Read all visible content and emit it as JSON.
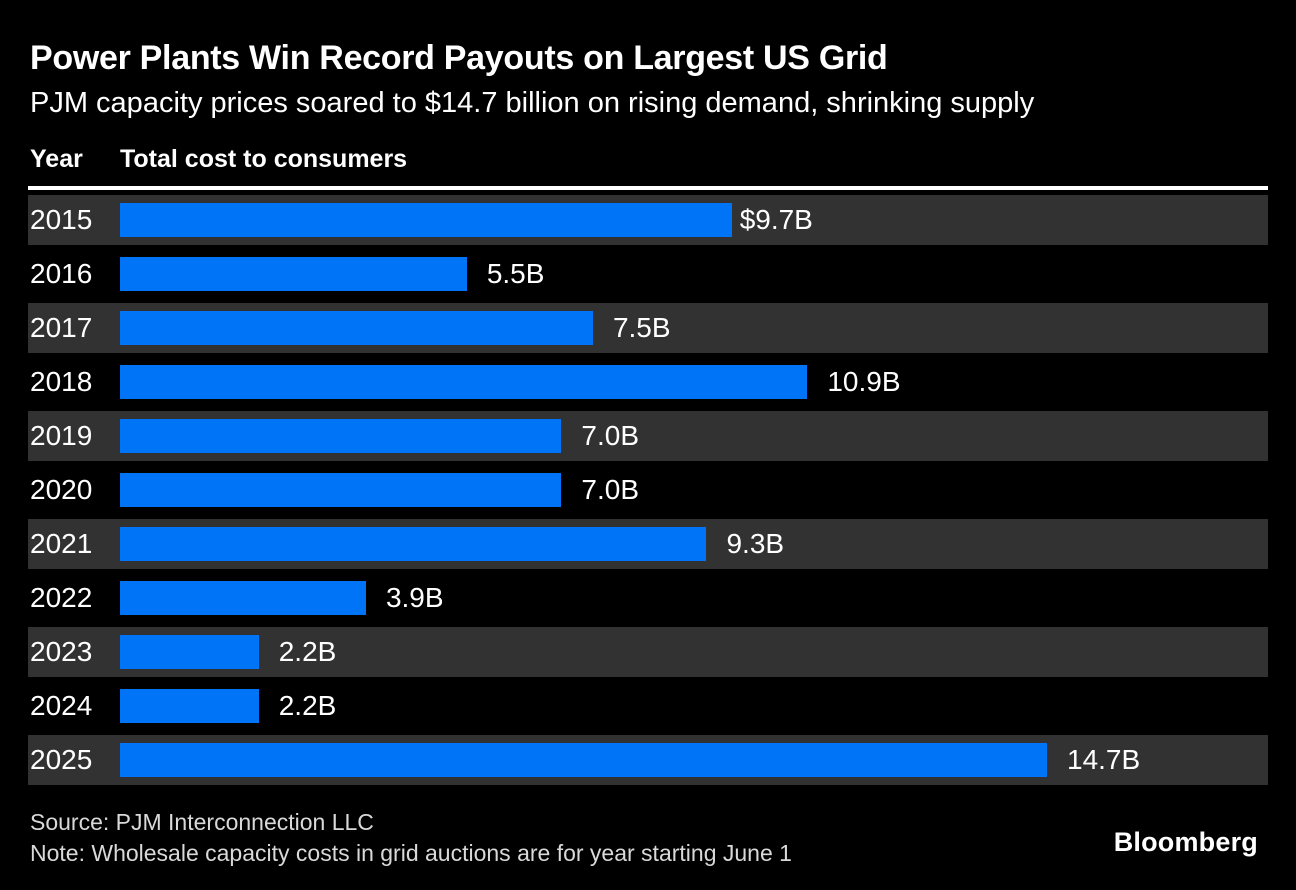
{
  "header": {
    "title": "Power Plants Win Record Payouts on Largest US Grid",
    "subtitle": "PJM capacity prices soared to $14.7 billion on rising demand, shrinking supply"
  },
  "columns": {
    "year_header": "Year",
    "value_header": "Total cost to consumers"
  },
  "chart_data": {
    "type": "bar",
    "orientation": "horizontal",
    "title": "Power Plants Win Record Payouts on Largest US Grid",
    "subtitle": "PJM capacity prices soared to $14.7 billion on rising demand, shrinking supply",
    "categories": [
      "2015",
      "2016",
      "2017",
      "2018",
      "2019",
      "2020",
      "2021",
      "2022",
      "2023",
      "2024",
      "2025"
    ],
    "values": [
      9.7,
      5.5,
      7.5,
      10.9,
      7.0,
      7.0,
      9.3,
      3.9,
      2.2,
      2.2,
      14.7
    ],
    "value_labels": [
      "$9.7B",
      "5.5B",
      "7.5B",
      "10.9B",
      "7.0B",
      "7.0B",
      "9.3B",
      "3.9B",
      "2.2B",
      "2.2B",
      "14.7B"
    ],
    "unit": "billion USD",
    "xlabel": "Total cost to consumers",
    "ylabel": "Year",
    "xlim": [
      0,
      14.7
    ],
    "grid": false,
    "legend": false,
    "bar_color": "#0074f7",
    "row_stripe_color": "#323232",
    "background_color": "#000000"
  },
  "footer": {
    "source": "Source: PJM Interconnection LLC",
    "note": "Note: Wholesale capacity costs in grid auctions are for year starting June 1",
    "brand": "Bloomberg"
  }
}
